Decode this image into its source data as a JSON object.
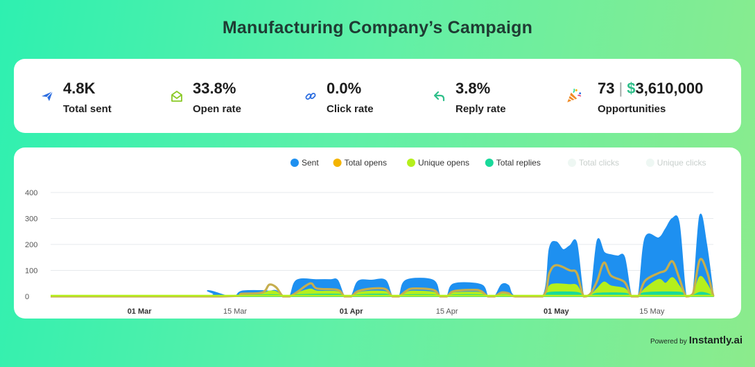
{
  "header": {
    "title": "Manufacturing Company’s Campaign"
  },
  "stats": [
    {
      "value": "4.8K",
      "label": "Total sent",
      "icon": "paper-plane-icon",
      "color": "#2b6de0"
    },
    {
      "value": "33.8%",
      "label": "Open rate",
      "icon": "open-envelope-icon",
      "color": "#8ac926"
    },
    {
      "value": "0.0%",
      "label": "Click rate",
      "icon": "link-icon",
      "color": "#2b6de0"
    },
    {
      "value": "3.8%",
      "label": "Reply rate",
      "icon": "reply-arrow-icon",
      "color": "#2fbf8a"
    }
  ],
  "opportunities": {
    "count": "73",
    "separator": "|",
    "currency": "$",
    "amount": "3,610,000",
    "label": "Opportunities",
    "icon": "party-popper-icon"
  },
  "footer": {
    "powered_by": "Powered by",
    "brand": "Instantly.ai"
  },
  "chart_data": {
    "type": "area",
    "title": "",
    "legend_position": "top-right",
    "grid": true,
    "ylim": [
      0,
      400
    ],
    "yticks": [
      0,
      100,
      200,
      300,
      400
    ],
    "x_start": "2024-02-17",
    "x_end": "2024-05-24",
    "xticks": [
      {
        "date": "2024-03-01",
        "label": "01 Mar",
        "bold": true
      },
      {
        "date": "2024-03-15",
        "label": "15 Mar",
        "bold": false
      },
      {
        "date": "2024-04-01",
        "label": "01 Apr",
        "bold": true
      },
      {
        "date": "2024-04-15",
        "label": "15 Apr",
        "bold": false
      },
      {
        "date": "2024-05-01",
        "label": "01 May",
        "bold": true
      },
      {
        "date": "2024-05-15",
        "label": "15 May",
        "bold": false
      }
    ],
    "series": [
      {
        "name": "Sent",
        "color": "#1e90f0",
        "visible": true,
        "kind": "area",
        "points": [
          [
            "2024-02-17",
            0
          ],
          [
            "2024-03-10",
            0
          ],
          [
            "2024-03-11",
            22
          ],
          [
            "2024-03-13",
            8
          ],
          [
            "2024-03-14",
            0
          ],
          [
            "2024-03-15",
            0
          ],
          [
            "2024-03-16",
            20
          ],
          [
            "2024-03-19",
            22
          ],
          [
            "2024-03-20",
            20
          ],
          [
            "2024-03-21",
            22
          ],
          [
            "2024-03-22",
            0
          ],
          [
            "2024-03-23",
            0
          ],
          [
            "2024-03-24",
            62
          ],
          [
            "2024-03-27",
            64
          ],
          [
            "2024-03-29",
            64
          ],
          [
            "2024-03-30",
            62
          ],
          [
            "2024-03-31",
            0
          ],
          [
            "2024-04-01",
            0
          ],
          [
            "2024-04-02",
            58
          ],
          [
            "2024-04-04",
            62
          ],
          [
            "2024-04-06",
            62
          ],
          [
            "2024-04-07",
            0
          ],
          [
            "2024-04-08",
            0
          ],
          [
            "2024-04-09",
            62
          ],
          [
            "2024-04-13",
            62
          ],
          [
            "2024-04-14",
            0
          ],
          [
            "2024-04-15",
            0
          ],
          [
            "2024-04-16",
            48
          ],
          [
            "2024-04-20",
            45
          ],
          [
            "2024-04-21",
            0
          ],
          [
            "2024-04-22",
            0
          ],
          [
            "2024-04-23",
            45
          ],
          [
            "2024-04-24",
            42
          ],
          [
            "2024-04-25",
            0
          ],
          [
            "2024-04-29",
            0
          ],
          [
            "2024-04-30",
            185
          ],
          [
            "2024-05-01",
            210
          ],
          [
            "2024-05-02",
            180
          ],
          [
            "2024-05-03",
            195
          ],
          [
            "2024-05-04",
            205
          ],
          [
            "2024-05-05",
            0
          ],
          [
            "2024-05-06",
            0
          ],
          [
            "2024-05-07",
            215
          ],
          [
            "2024-05-08",
            170
          ],
          [
            "2024-05-09",
            160
          ],
          [
            "2024-05-10",
            155
          ],
          [
            "2024-05-11",
            150
          ],
          [
            "2024-05-12",
            0
          ],
          [
            "2024-05-13",
            0
          ],
          [
            "2024-05-14",
            225
          ],
          [
            "2024-05-16",
            225
          ],
          [
            "2024-05-17",
            260
          ],
          [
            "2024-05-18",
            300
          ],
          [
            "2024-05-19",
            280
          ],
          [
            "2024-05-20",
            0
          ],
          [
            "2024-05-21",
            10
          ],
          [
            "2024-05-22",
            310
          ],
          [
            "2024-05-23",
            200
          ],
          [
            "2024-05-24",
            0
          ]
        ]
      },
      {
        "name": "Total opens",
        "color": "#f4b400",
        "visible": true,
        "kind": "line",
        "points": [
          [
            "2024-02-17",
            0
          ],
          [
            "2024-03-13",
            0
          ],
          [
            "2024-03-16",
            10
          ],
          [
            "2024-03-19",
            15
          ],
          [
            "2024-03-20",
            45
          ],
          [
            "2024-03-21",
            35
          ],
          [
            "2024-03-22",
            0
          ],
          [
            "2024-03-23",
            0
          ],
          [
            "2024-03-24",
            15
          ],
          [
            "2024-03-26",
            50
          ],
          [
            "2024-03-27",
            30
          ],
          [
            "2024-03-30",
            25
          ],
          [
            "2024-03-31",
            0
          ],
          [
            "2024-04-01",
            0
          ],
          [
            "2024-04-02",
            20
          ],
          [
            "2024-04-04",
            30
          ],
          [
            "2024-04-06",
            28
          ],
          [
            "2024-04-07",
            0
          ],
          [
            "2024-04-08",
            0
          ],
          [
            "2024-04-09",
            20
          ],
          [
            "2024-04-10",
            30
          ],
          [
            "2024-04-13",
            25
          ],
          [
            "2024-04-14",
            0
          ],
          [
            "2024-04-15",
            0
          ],
          [
            "2024-04-16",
            20
          ],
          [
            "2024-04-19",
            25
          ],
          [
            "2024-04-20",
            20
          ],
          [
            "2024-04-21",
            0
          ],
          [
            "2024-04-22",
            0
          ],
          [
            "2024-04-23",
            15
          ],
          [
            "2024-04-24",
            12
          ],
          [
            "2024-04-25",
            0
          ],
          [
            "2024-04-29",
            0
          ],
          [
            "2024-04-30",
            90
          ],
          [
            "2024-05-01",
            120
          ],
          [
            "2024-05-03",
            100
          ],
          [
            "2024-05-04",
            90
          ],
          [
            "2024-05-05",
            0
          ],
          [
            "2024-05-06",
            10
          ],
          [
            "2024-05-07",
            60
          ],
          [
            "2024-05-08",
            130
          ],
          [
            "2024-05-09",
            80
          ],
          [
            "2024-05-11",
            55
          ],
          [
            "2024-05-12",
            0
          ],
          [
            "2024-05-13",
            0
          ],
          [
            "2024-05-14",
            60
          ],
          [
            "2024-05-16",
            90
          ],
          [
            "2024-05-17",
            100
          ],
          [
            "2024-05-18",
            135
          ],
          [
            "2024-05-19",
            70
          ],
          [
            "2024-05-20",
            0
          ],
          [
            "2024-05-21",
            10
          ],
          [
            "2024-05-22",
            140
          ],
          [
            "2024-05-23",
            100
          ],
          [
            "2024-05-24",
            0
          ]
        ]
      },
      {
        "name": "Unique opens",
        "color": "#b5ef1c",
        "visible": true,
        "kind": "area",
        "points": [
          [
            "2024-02-17",
            0
          ],
          [
            "2024-03-13",
            0
          ],
          [
            "2024-03-16",
            8
          ],
          [
            "2024-03-19",
            12
          ],
          [
            "2024-03-20",
            20
          ],
          [
            "2024-03-21",
            18
          ],
          [
            "2024-03-22",
            0
          ],
          [
            "2024-03-23",
            0
          ],
          [
            "2024-03-24",
            12
          ],
          [
            "2024-03-26",
            28
          ],
          [
            "2024-03-27",
            20
          ],
          [
            "2024-03-30",
            18
          ],
          [
            "2024-03-31",
            0
          ],
          [
            "2024-04-01",
            0
          ],
          [
            "2024-04-02",
            14
          ],
          [
            "2024-04-04",
            20
          ],
          [
            "2024-04-06",
            18
          ],
          [
            "2024-04-07",
            0
          ],
          [
            "2024-04-08",
            0
          ],
          [
            "2024-04-09",
            14
          ],
          [
            "2024-04-10",
            20
          ],
          [
            "2024-04-13",
            16
          ],
          [
            "2024-04-14",
            0
          ],
          [
            "2024-04-15",
            0
          ],
          [
            "2024-04-16",
            14
          ],
          [
            "2024-04-19",
            16
          ],
          [
            "2024-04-20",
            14
          ],
          [
            "2024-04-21",
            0
          ],
          [
            "2024-04-22",
            0
          ],
          [
            "2024-04-23",
            10
          ],
          [
            "2024-04-24",
            8
          ],
          [
            "2024-04-25",
            0
          ],
          [
            "2024-04-29",
            0
          ],
          [
            "2024-04-30",
            40
          ],
          [
            "2024-05-01",
            48
          ],
          [
            "2024-05-03",
            45
          ],
          [
            "2024-05-04",
            42
          ],
          [
            "2024-05-05",
            0
          ],
          [
            "2024-05-06",
            5
          ],
          [
            "2024-05-07",
            30
          ],
          [
            "2024-05-08",
            55
          ],
          [
            "2024-05-09",
            40
          ],
          [
            "2024-05-11",
            30
          ],
          [
            "2024-05-12",
            0
          ],
          [
            "2024-05-13",
            0
          ],
          [
            "2024-05-14",
            30
          ],
          [
            "2024-05-16",
            65
          ],
          [
            "2024-05-17",
            50
          ],
          [
            "2024-05-18",
            72
          ],
          [
            "2024-05-19",
            40
          ],
          [
            "2024-05-20",
            0
          ],
          [
            "2024-05-21",
            5
          ],
          [
            "2024-05-22",
            75
          ],
          [
            "2024-05-23",
            50
          ],
          [
            "2024-05-24",
            0
          ]
        ]
      },
      {
        "name": "Total replies",
        "color": "#19d99a",
        "visible": true,
        "kind": "area",
        "points": [
          [
            "2024-02-17",
            0
          ],
          [
            "2024-03-13",
            0
          ],
          [
            "2024-03-16",
            4
          ],
          [
            "2024-03-21",
            6
          ],
          [
            "2024-03-22",
            0
          ],
          [
            "2024-03-23",
            0
          ],
          [
            "2024-03-24",
            6
          ],
          [
            "2024-03-30",
            8
          ],
          [
            "2024-03-31",
            0
          ],
          [
            "2024-04-01",
            0
          ],
          [
            "2024-04-02",
            6
          ],
          [
            "2024-04-06",
            8
          ],
          [
            "2024-04-07",
            0
          ],
          [
            "2024-04-08",
            0
          ],
          [
            "2024-04-09",
            6
          ],
          [
            "2024-04-13",
            6
          ],
          [
            "2024-04-14",
            0
          ],
          [
            "2024-04-15",
            0
          ],
          [
            "2024-04-16",
            6
          ],
          [
            "2024-04-20",
            6
          ],
          [
            "2024-04-21",
            0
          ],
          [
            "2024-04-22",
            0
          ],
          [
            "2024-04-23",
            5
          ],
          [
            "2024-04-24",
            4
          ],
          [
            "2024-04-25",
            0
          ],
          [
            "2024-04-29",
            0
          ],
          [
            "2024-04-30",
            15
          ],
          [
            "2024-05-04",
            15
          ],
          [
            "2024-05-05",
            0
          ],
          [
            "2024-05-06",
            0
          ],
          [
            "2024-05-07",
            12
          ],
          [
            "2024-05-11",
            12
          ],
          [
            "2024-05-12",
            0
          ],
          [
            "2024-05-13",
            0
          ],
          [
            "2024-05-14",
            14
          ],
          [
            "2024-05-19",
            16
          ],
          [
            "2024-05-20",
            0
          ],
          [
            "2024-05-21",
            4
          ],
          [
            "2024-05-22",
            15
          ],
          [
            "2024-05-23",
            12
          ],
          [
            "2024-05-24",
            0
          ]
        ]
      },
      {
        "name": "Total clicks",
        "color": "#e4f5ee",
        "visible": false,
        "kind": "area",
        "points": []
      },
      {
        "name": "Unique clicks",
        "color": "#e4f5ee",
        "visible": false,
        "kind": "area",
        "points": []
      }
    ]
  }
}
